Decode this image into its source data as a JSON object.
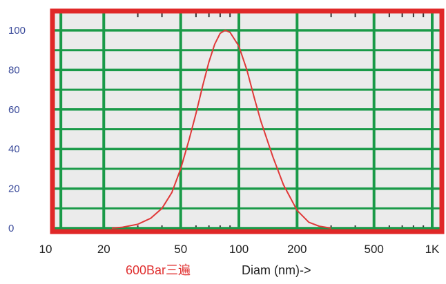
{
  "chart_data": {
    "type": "line",
    "x_scale": "log",
    "xlim": [
      10,
      1200
    ],
    "ylim": [
      0,
      100
    ],
    "grid": true,
    "y_ticks": [
      0,
      20,
      40,
      60,
      80,
      100
    ],
    "x_ticks": [
      {
        "value": 10,
        "label": "10"
      },
      {
        "value": 20,
        "label": "20"
      },
      {
        "value": 50,
        "label": "50"
      },
      {
        "value": 100,
        "label": "100"
      },
      {
        "value": 200,
        "label": "200"
      },
      {
        "value": 500,
        "label": "500"
      },
      {
        "value": 1000,
        "label": "1K"
      }
    ],
    "series_label": "600Bar三遍",
    "xlabel": "Diam (nm)->",
    "series": [
      {
        "color": "#e03838",
        "x": [
          22,
          25,
          30,
          35,
          40,
          45,
          50,
          55,
          60,
          65,
          70,
          75,
          80,
          85,
          90,
          100,
          110,
          120,
          130,
          150,
          170,
          200,
          230,
          260,
          300
        ],
        "y": [
          0,
          0.5,
          2,
          5,
          10,
          18,
          30,
          44,
          58,
          72,
          84,
          93,
          98.5,
          100,
          99,
          92,
          80,
          66,
          54,
          36,
          22,
          9,
          3,
          1,
          0
        ]
      }
    ],
    "colors": {
      "frame": "#e02828",
      "grid": "#1a9a48",
      "plot_bg": "#ebebeb",
      "y_tick_text": "#3a4a9a"
    }
  }
}
